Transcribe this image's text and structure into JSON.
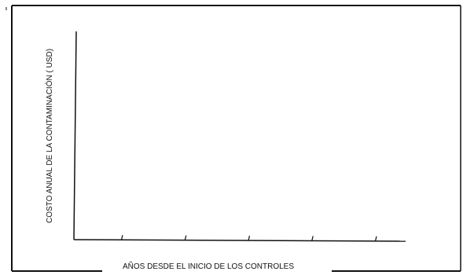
{
  "chart_data": {
    "type": "line",
    "title": "",
    "xlabel": "AÑOS DESDE EL INICIO DE LOS CONTROLES",
    "ylabel": "COSTO ANUAL DE LA CONTAMINACIÓN ( USD)",
    "x_tick_labels": [
      "",
      "",
      "",
      "",
      ""
    ],
    "series": [],
    "grid": false,
    "legend": "none"
  },
  "colors": {
    "ink": "#111111",
    "background": "#ffffff"
  }
}
